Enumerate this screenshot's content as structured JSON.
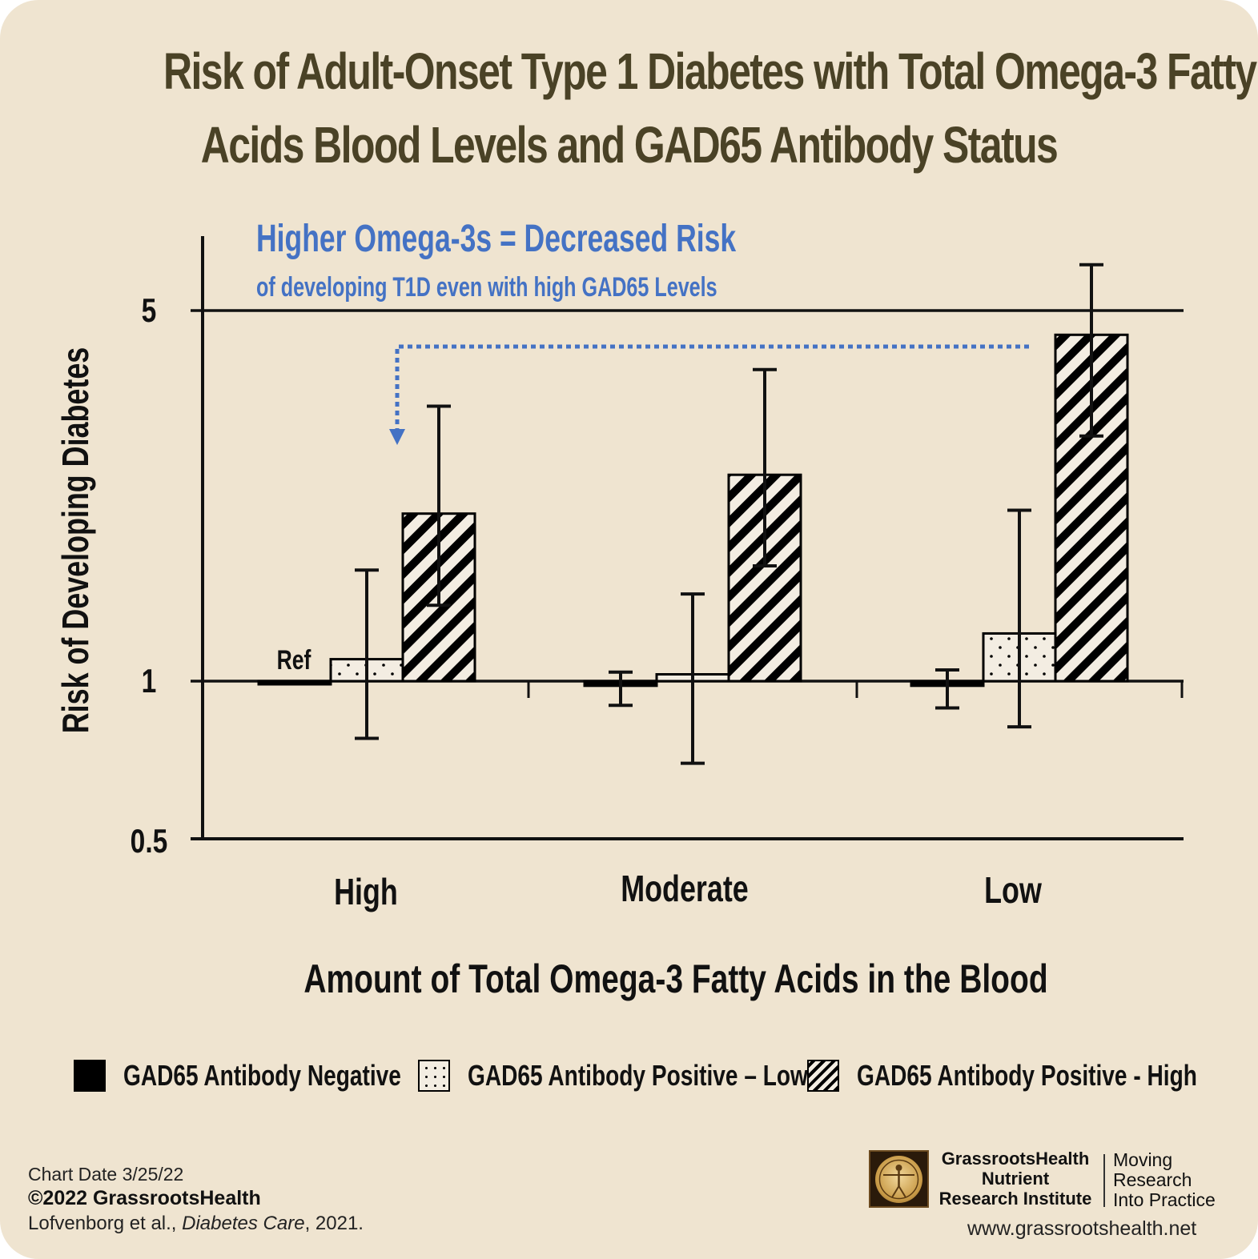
{
  "title_line1": "Risk of Adult-Onset Type 1 Diabetes with Total Omega-3 Fatty",
  "title_line2": "Acids Blood Levels and GAD65 Antibody Status",
  "annotation": {
    "headline": "Higher Omega-3s = Decreased Risk",
    "subline": "of developing T1D even with high GAD65 Levels",
    "color": "#4472c4"
  },
  "chart_data": {
    "type": "bar",
    "scale": "log",
    "ylim": [
      0.5,
      6.3
    ],
    "yticks": [
      "0.5",
      "1",
      "5"
    ],
    "ylabel": "Risk of Developing Diabetes",
    "xlabel": "Amount of Total Omega-3 Fatty Acids in the Blood",
    "categories": [
      "High",
      "Moderate",
      "Low"
    ],
    "ref_label": "Ref",
    "series": [
      {
        "name": "GAD65 Antibody Negative",
        "pattern": "solid",
        "values": [
          1.0,
          0.98,
          0.98
        ],
        "ci_low": [
          null,
          0.9,
          0.89
        ],
        "ci_high": [
          null,
          1.04,
          1.05
        ]
      },
      {
        "name": "GAD65 Antibody Positive – Low",
        "pattern": "dots",
        "values": [
          1.1,
          1.03,
          1.23
        ],
        "ci_low": [
          0.78,
          0.7,
          0.82
        ],
        "ci_high": [
          1.62,
          1.46,
          2.1
        ]
      },
      {
        "name": "GAD65 Antibody Positive - High",
        "pattern": "diagonal-stripes",
        "values": [
          2.07,
          2.45,
          4.5
        ],
        "ci_low": [
          1.39,
          1.65,
          2.9
        ],
        "ci_high": [
          3.3,
          3.87,
          6.1
        ]
      }
    ],
    "legend_position": "bottom"
  },
  "footer": {
    "chart_date": "Chart Date 3/25/22",
    "copyright": "©2022 GrassrootsHealth",
    "citation_authors": "Lofvenborg et al., ",
    "citation_journal": "Diabetes Care",
    "citation_year": ", 2021.",
    "org_line1": "GrassrootsHealth",
    "org_line2": "Nutrient",
    "org_line3": "Research Institute",
    "tagline1": "Moving",
    "tagline2": "Research",
    "tagline3": "Into Practice",
    "website": "www.grassrootshealth.net"
  },
  "logo_icon": "vitruvian-man-icon",
  "colors": {
    "background": "#efe4d0",
    "title": "#4a4226",
    "axis": "#111111",
    "annotation": "#4472c4"
  }
}
